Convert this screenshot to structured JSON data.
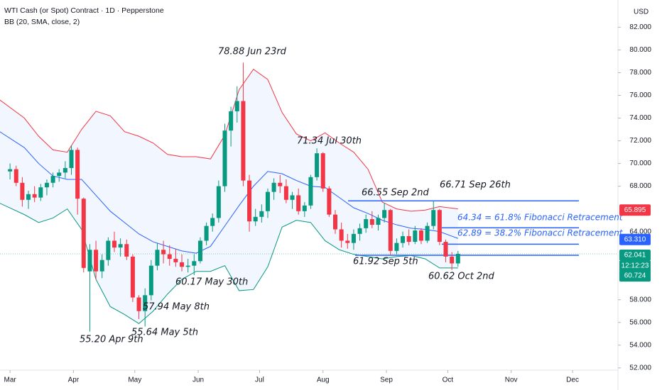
{
  "chart_data": {
    "type": "candlestick",
    "title": "WTI Cash (or Spot) Contract · 1D · Pepperstone",
    "subtitle": "BB (20, SMA, close, 2)",
    "currency": "USD",
    "up_color": "#089981",
    "down_color": "#f23645",
    "xlim": [
      -4.9,
      297.2
    ],
    "ylim": [
      51.8,
      84.4
    ],
    "xticks": [
      {
        "value": 0,
        "label": "Mar"
      },
      {
        "value": 31,
        "label": "Apr"
      },
      {
        "value": 61,
        "label": "May"
      },
      {
        "value": 92,
        "label": "Jun"
      },
      {
        "value": 122,
        "label": "Jul"
      },
      {
        "value": 153,
        "label": "Aug"
      },
      {
        "value": 184,
        "label": "Sep"
      },
      {
        "value": 214,
        "label": "Oct"
      },
      {
        "value": 245,
        "label": "Nov"
      },
      {
        "value": 275,
        "label": "Dec"
      }
    ],
    "yticks": [
      {
        "value": 82,
        "label": "82.000"
      },
      {
        "value": 80,
        "label": "80.000"
      },
      {
        "value": 78,
        "label": "78.000"
      },
      {
        "value": 76,
        "label": "76.000"
      },
      {
        "value": 74,
        "label": "74.000"
      },
      {
        "value": 72,
        "label": "72.000"
      },
      {
        "value": 70,
        "label": "70.000"
      },
      {
        "value": 68,
        "label": "68.000"
      },
      {
        "value": 64,
        "label": "64.000"
      },
      {
        "value": 58,
        "label": "58.000"
      },
      {
        "value": 56,
        "label": "56.000"
      },
      {
        "value": 54,
        "label": "54.000"
      },
      {
        "value": 52,
        "label": "52.000"
      }
    ],
    "x": [
      0,
      3,
      6,
      9,
      12,
      15,
      18,
      21,
      24,
      27,
      30,
      33,
      36,
      39,
      42,
      45,
      48,
      51,
      54,
      57,
      60,
      63,
      66,
      69,
      72,
      75,
      78,
      81,
      84,
      87,
      90,
      93,
      96,
      99,
      102,
      105,
      108,
      111,
      114,
      117,
      120,
      123,
      126,
      129,
      132,
      135,
      138,
      141,
      144,
      147,
      150,
      153,
      156,
      159,
      162,
      165,
      168,
      171,
      174,
      177,
      180,
      183,
      186,
      189,
      192,
      195,
      198,
      201,
      204,
      207,
      210,
      213,
      216,
      219
    ],
    "open": [
      69.3,
      69.5,
      68.3,
      66.8,
      67.3,
      67.0,
      67.9,
      68.3,
      68.9,
      69.2,
      69.6,
      71.2,
      66.9,
      60.5,
      62.4,
      60.5,
      61.5,
      63.2,
      62.6,
      62.9,
      61.8,
      58.2,
      57.0,
      58.4,
      61.0,
      62.4,
      62.0,
      61.6,
      61.3,
      60.9,
      61.0,
      61.4,
      63.2,
      64.5,
      65.2,
      68.0,
      72.9,
      74.6,
      75.5,
      68.5,
      64.9,
      65.3,
      65.8,
      67.5,
      68.3,
      68.0,
      66.8,
      67.2,
      65.8,
      66.3,
      68.8,
      70.9,
      67.8,
      65.5,
      64.2,
      63.2,
      63.0,
      63.8,
      64.3,
      65.1,
      64.6,
      65.2,
      65.9,
      62.3,
      63.0,
      63.6,
      63.1,
      64.1,
      63.2,
      64.5,
      65.9,
      63.1,
      61.8,
      61.2
    ],
    "high": [
      70.0,
      69.8,
      68.8,
      67.6,
      68.0,
      68.2,
      68.6,
      69.2,
      69.5,
      70.2,
      71.6,
      71.4,
      67.0,
      62.9,
      63.2,
      62.0,
      63.5,
      64.0,
      63.4,
      63.3,
      62.0,
      58.4,
      59.0,
      61.5,
      63.0,
      63.2,
      62.8,
      62.5,
      62.0,
      61.6,
      62.0,
      63.5,
      64.8,
      65.6,
      68.5,
      73.5,
      75.0,
      76.8,
      78.88,
      69.0,
      66.0,
      66.4,
      67.8,
      68.7,
      69.0,
      68.6,
      67.5,
      67.8,
      66.6,
      69.0,
      71.34,
      71.0,
      68.0,
      65.9,
      64.8,
      63.8,
      64.2,
      64.7,
      65.5,
      65.8,
      65.5,
      66.55,
      66.0,
      63.4,
      64.0,
      64.2,
      64.5,
      64.3,
      64.8,
      66.71,
      66.0,
      63.3,
      62.2,
      62.3
    ],
    "low": [
      68.6,
      68.0,
      66.2,
      66.0,
      66.6,
      66.7,
      67.2,
      67.9,
      68.4,
      68.7,
      69.0,
      65.5,
      60.4,
      55.2,
      59.8,
      59.9,
      61.0,
      62.2,
      61.8,
      61.5,
      57.8,
      56.3,
      55.64,
      57.94,
      60.6,
      61.2,
      61.0,
      60.9,
      60.5,
      60.4,
      60.17,
      61.2,
      62.8,
      64.0,
      64.8,
      67.5,
      71.5,
      73.6,
      68.0,
      64.0,
      64.5,
      64.8,
      65.2,
      66.8,
      67.4,
      66.5,
      66.0,
      65.5,
      65.3,
      66.0,
      68.5,
      67.5,
      65.3,
      63.8,
      62.6,
      62.5,
      62.4,
      63.2,
      63.9,
      64.3,
      64.1,
      64.8,
      61.92,
      62.0,
      62.6,
      62.8,
      62.9,
      62.9,
      63.0,
      64.2,
      62.8,
      61.3,
      60.62,
      60.9
    ],
    "close": [
      69.5,
      68.3,
      66.8,
      67.3,
      67.0,
      67.9,
      68.3,
      68.9,
      69.2,
      69.6,
      71.2,
      66.9,
      60.8,
      62.4,
      60.5,
      61.5,
      63.2,
      62.6,
      62.9,
      61.8,
      58.2,
      57.0,
      58.4,
      61.0,
      62.4,
      62.0,
      61.6,
      61.3,
      60.9,
      61.0,
      61.4,
      63.2,
      64.5,
      65.2,
      68.0,
      72.9,
      74.6,
      75.5,
      68.5,
      64.9,
      65.3,
      65.8,
      67.5,
      68.3,
      68.0,
      66.8,
      67.2,
      65.8,
      66.3,
      68.8,
      70.9,
      67.8,
      65.5,
      64.2,
      63.2,
      63.0,
      63.8,
      64.3,
      65.1,
      64.6,
      65.2,
      65.9,
      62.3,
      63.0,
      63.6,
      63.1,
      64.1,
      63.2,
      64.5,
      65.9,
      63.1,
      61.8,
      61.2,
      62.04
    ],
    "bands": {
      "x": [
        -5,
        7,
        14,
        21,
        28,
        35,
        42,
        49,
        56,
        63,
        70,
        77,
        84,
        91,
        98,
        105,
        112,
        119,
        126,
        133,
        140,
        147,
        154,
        161,
        168,
        175,
        182,
        189,
        196,
        203,
        210,
        219
      ],
      "upper": [
        75.6,
        74.0,
        72.4,
        71.2,
        71.0,
        73.0,
        74.6,
        74.2,
        72.8,
        72.4,
        71.8,
        70.8,
        70.6,
        70.6,
        70.4,
        72.5,
        76.5,
        78.3,
        77.4,
        74.5,
        72.6,
        72.0,
        72.7,
        71.8,
        71.0,
        69.5,
        66.6,
        66.0,
        65.8,
        65.9,
        66.2,
        66.0
      ],
      "middle": [
        72.8,
        71.4,
        70.0,
        68.9,
        68.6,
        68.6,
        67.2,
        65.8,
        64.8,
        63.8,
        63.1,
        62.7,
        62.3,
        62.1,
        62.7,
        64.5,
        66.3,
        68.0,
        69.3,
        69.1,
        68.5,
        68.0,
        67.9,
        67.0,
        66.1,
        65.6,
        65.0,
        64.6,
        64.3,
        64.2,
        64.0,
        63.4
      ],
      "lower": [
        66.5,
        65.5,
        64.8,
        65.2,
        66.0,
        64.2,
        59.8,
        57.4,
        56.7,
        55.9,
        57.0,
        58.5,
        59.8,
        60.5,
        60.5,
        61.0,
        58.8,
        58.9,
        60.9,
        64.4,
        65.0,
        64.8,
        63.2,
        62.4,
        62.0,
        61.8,
        61.6,
        61.8,
        61.9,
        61.6,
        60.8,
        60.8
      ],
      "upper_color": "#f23645",
      "middle_color": "#2962ff",
      "lower_color": "#089981",
      "fill": "#2962ff"
    },
    "levels": [
      66.71,
      64.34,
      62.89,
      61.92
    ],
    "level_color": "#2962ff",
    "current_price": 62.041,
    "price_tags": [
      {
        "value": 65.895,
        "label": "65.895",
        "color": "#f23645"
      },
      {
        "value": 63.31,
        "label": "63.310",
        "color": "#2962ff"
      },
      {
        "value": 62.041,
        "label": "62.041",
        "color": "#089981"
      },
      {
        "value": 60.724,
        "label": "60.724",
        "color": "#089981"
      }
    ],
    "countdown": "12:12:23",
    "annotations": [
      "78.88 Jun 23rd",
      "71.34 Jul 30th",
      "66.55 Sep 2nd",
      "66.71 Sep 26th",
      "64.34 = 61.8% Fibonacci Retracement",
      "62.89 = 38.2% Fibonacci Retracement",
      "61.92 Sep 5th",
      "60.62 Oct 2nd",
      "60.17 May 30th",
      "57.94 May 8th",
      "55.64 May 5th",
      "55.20 Apr 9th"
    ]
  }
}
